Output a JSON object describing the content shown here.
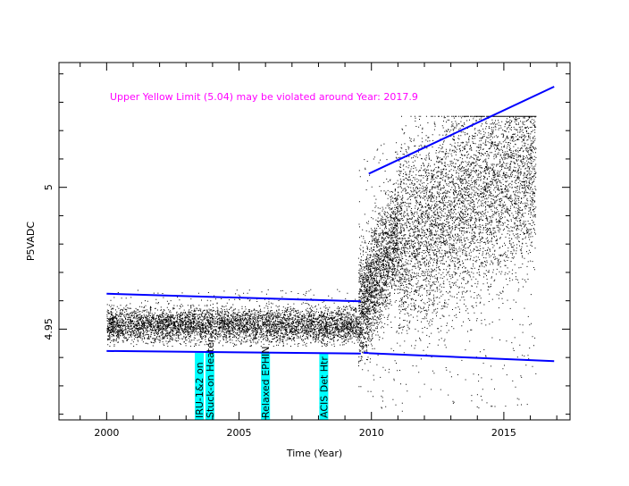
{
  "chart_data": {
    "type": "scatter",
    "title": "",
    "xlabel": "Time (Year)",
    "ylabel": "P5VADC",
    "xlim": [
      1998.2,
      2017.5
    ],
    "ylim": [
      4.918,
      5.044
    ],
    "x_ticks": [
      {
        "value": 2000,
        "label": "2000"
      },
      {
        "value": 2005,
        "label": "2005"
      },
      {
        "value": 2010,
        "label": "2010"
      },
      {
        "value": 2015,
        "label": "2015"
      }
    ],
    "y_ticks": [
      {
        "value": 4.95,
        "label": "4.95"
      },
      {
        "value": 5.0,
        "label": "5"
      }
    ],
    "annotation": "Upper Yellow  Limit (5.04) may be violated around Year: 2017.9",
    "events": [
      {
        "x": 2003.5,
        "label": "IRU-1&2 on"
      },
      {
        "x": 2003.9,
        "label": "Stuck-on Heater"
      },
      {
        "x": 2006.0,
        "label": "Relaxed EPHIN"
      },
      {
        "x": 2008.2,
        "label": "ACIS Det Htr"
      }
    ],
    "trend_lines": [
      {
        "x": [
          2000.0,
          2009.6
        ],
        "y": [
          4.9625,
          4.9598
        ]
      },
      {
        "x": [
          2000.0,
          2009.6
        ],
        "y": [
          4.9423,
          4.9414
        ]
      },
      {
        "x": [
          2009.7,
          2009.9
        ],
        "y": [
          4.9417,
          4.9416
        ]
      },
      {
        "x": [
          2009.9,
          2016.9
        ],
        "y": [
          5.0048,
          5.0355
        ]
      },
      {
        "x": [
          2009.9,
          2016.9
        ],
        "y": [
          4.9415,
          4.9387
        ]
      }
    ],
    "data_segments": [
      {
        "x": [
          2000.0,
          2009.5
        ],
        "center": 4.9515,
        "spread": 0.006,
        "outlier_low": 4.944,
        "outlier_high": 4.964
      },
      {
        "x": [
          2009.5,
          2011.0
        ],
        "center_start": 4.955,
        "center_end": 4.985,
        "spread": 0.02,
        "outlier_low": 4.921,
        "outlier_high": 5.016
      },
      {
        "x": [
          2011.0,
          2016.2
        ],
        "center_start": 4.98,
        "center_end": 5.01,
        "spread": 0.035,
        "outlier_low": 4.921,
        "outlier_high": 5.025
      }
    ],
    "colors": {
      "points": "#000000",
      "trend": "#0000ff",
      "event_band": "#00ffff",
      "annotation": "#ff00ff"
    },
    "grid": false
  }
}
